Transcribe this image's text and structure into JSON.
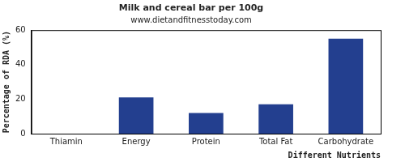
{
  "chart_data": {
    "type": "bar",
    "title": "Milk and cereal bar per 100g",
    "subtitle": "www.dietandfitnesstoday.com",
    "x_label": "Different Nutrients",
    "y_label": "Percentage of RDA (%)",
    "categories": [
      "Thiamin",
      "Energy",
      "Protein",
      "Total Fat",
      "Carbohydrate"
    ],
    "values": [
      0,
      21,
      12,
      17,
      55
    ],
    "color": "#233f8f",
    "ylim": [
      0,
      60
    ],
    "yticks": [
      0,
      20,
      40,
      60
    ],
    "grid": false
  }
}
